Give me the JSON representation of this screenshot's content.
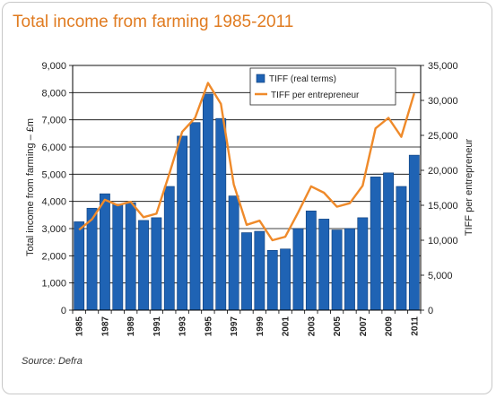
{
  "title": "Total income from farming 1985-2011",
  "source": "Source: Defra",
  "colors": {
    "bar": "#1f63b4",
    "bar_edge": "#0c3d7a",
    "line": "#ef8a2a",
    "title": "#e07b20"
  },
  "chart_data": {
    "type": "bar",
    "x": [
      1985,
      1986,
      1987,
      1988,
      1989,
      1990,
      1991,
      1992,
      1993,
      1994,
      1995,
      1996,
      1997,
      1998,
      1999,
      2000,
      2001,
      2002,
      2003,
      2004,
      2005,
      2006,
      2007,
      2008,
      2009,
      2010,
      2011
    ],
    "x_tick_labels": [
      "1985",
      "1987",
      "1989",
      "1991",
      "1993",
      "1995",
      "1997",
      "1999",
      "2001",
      "2003",
      "2005",
      "2007",
      "2009",
      "2011"
    ],
    "series": [
      {
        "name": "TIFF (real terms)",
        "type": "bar",
        "axis": "left",
        "values": [
          3250,
          3750,
          4280,
          3900,
          3950,
          3300,
          3400,
          4550,
          6400,
          6900,
          7950,
          7050,
          4200,
          2850,
          2900,
          2200,
          2250,
          3000,
          3650,
          3350,
          2950,
          3000,
          3400,
          4900,
          5050,
          4550,
          5700
        ]
      },
      {
        "name": "TIFF per entrepreneur",
        "type": "line",
        "axis": "right",
        "values": [
          11500,
          13000,
          15800,
          15000,
          15500,
          13300,
          13800,
          19500,
          25500,
          27500,
          32500,
          29500,
          18000,
          12200,
          12800,
          10000,
          10500,
          14000,
          17700,
          16800,
          14800,
          15300,
          17800,
          26000,
          27500,
          24800,
          31000
        ]
      }
    ],
    "ylabel": "Total income from farming – £m",
    "ylabel_right": "TIFF per entrepreneur",
    "ylim": [
      0,
      9000
    ],
    "ylim_right": [
      0,
      35000
    ],
    "y_ticks": [
      "0",
      "1,000",
      "2,000",
      "3,000",
      "4,000",
      "5,000",
      "6,000",
      "7,000",
      "8,000",
      "9,000"
    ],
    "y_ticks_right": [
      "0",
      "5,000",
      "10,000",
      "15,000",
      "20,000",
      "25,000",
      "30,000",
      "35,000"
    ],
    "grid": "horizontal",
    "legend_position": "top-right"
  }
}
